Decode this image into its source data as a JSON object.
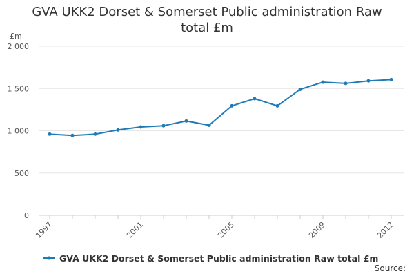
{
  "title_lines": [
    "GVA UKK2 Dorset & Somerset Public administration Raw",
    "total £m"
  ],
  "source_label": "Source:",
  "chart_data": {
    "type": "line",
    "title": "GVA UKK2 Dorset & Somerset Public administration Raw total £m",
    "ylabel": "£m",
    "xlabel": "",
    "xlim": [
      1997,
      2012
    ],
    "ylim": [
      0,
      2000
    ],
    "y_ticks": [
      0,
      500,
      1000,
      1500,
      2000
    ],
    "y_tick_labels": [
      "0",
      "500",
      "1 000",
      "1 500",
      "2 000"
    ],
    "x_tick_labels": [
      "1997",
      "2001",
      "2005",
      "2009",
      "2012"
    ],
    "x_tick_values": [
      1997,
      2001,
      2005,
      2009,
      2012
    ],
    "grid": true,
    "legend_position": "bottom-left",
    "x": [
      1997,
      1998,
      1999,
      2000,
      2001,
      2002,
      2003,
      2004,
      2005,
      2006,
      2007,
      2008,
      2009,
      2010,
      2011,
      2012
    ],
    "series": [
      {
        "name": "GVA UKK2 Dorset & Somerset Public administration Raw total £m",
        "color": "#1f7bb6",
        "values": [
          960,
          945,
          960,
          1010,
          1045,
          1060,
          1115,
          1065,
          1295,
          1380,
          1295,
          1490,
          1575,
          1560,
          1590,
          1605
        ]
      }
    ]
  }
}
